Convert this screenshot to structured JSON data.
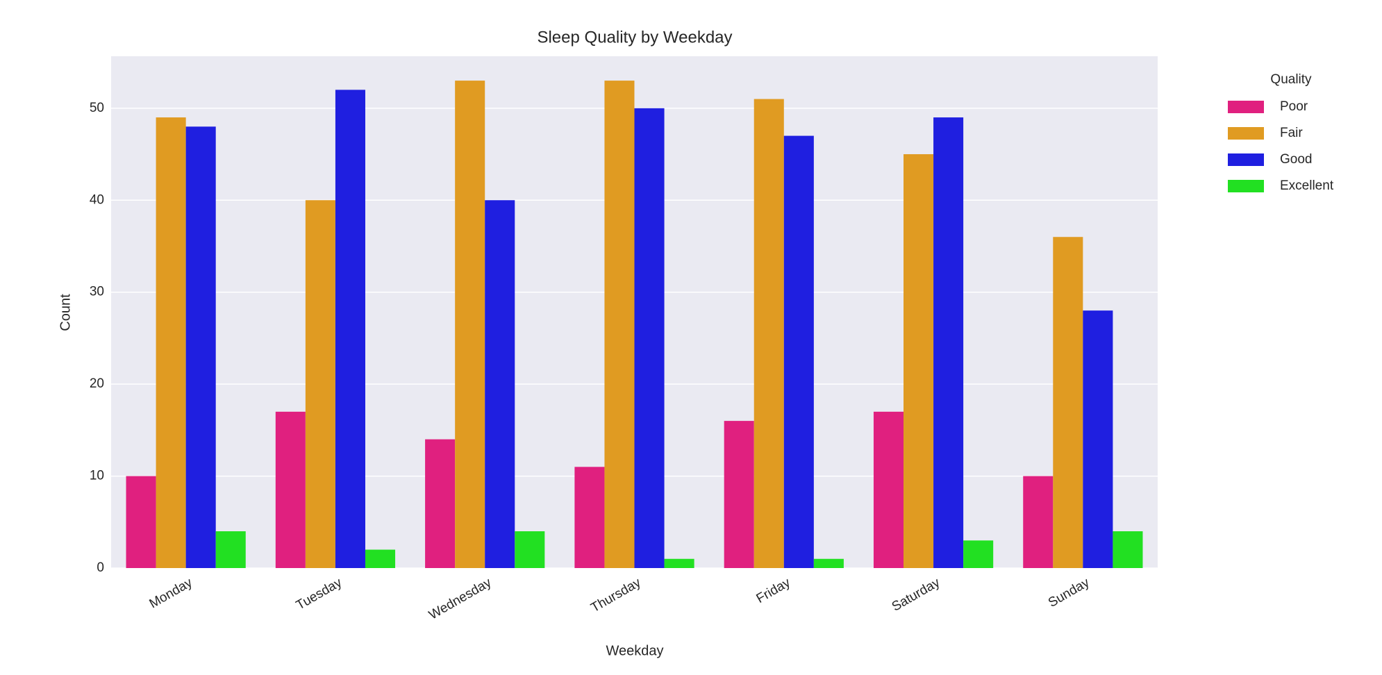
{
  "chart_data": {
    "type": "bar",
    "title": "Sleep Quality by Weekday",
    "x_label": "Weekday",
    "y_label": "Count",
    "categories": [
      "Monday",
      "Tuesday",
      "Wednesday",
      "Thursday",
      "Friday",
      "Saturday",
      "Sunday"
    ],
    "legend_title": "Quality",
    "series": [
      {
        "name": "Poor",
        "color": "#e0207f",
        "values": [
          10,
          17,
          14,
          11,
          16,
          17,
          10
        ]
      },
      {
        "name": "Fair",
        "color": "#e09b22",
        "values": [
          49,
          40,
          53,
          53,
          51,
          45,
          36
        ]
      },
      {
        "name": "Good",
        "color": "#1f1fe0",
        "values": [
          48,
          52,
          40,
          50,
          47,
          49,
          28
        ]
      },
      {
        "name": "Excellent",
        "color": "#22e022",
        "values": [
          4,
          2,
          4,
          1,
          1,
          3,
          4
        ]
      }
    ],
    "ylim": [
      0,
      55.65
    ],
    "yticks": [
      0,
      10,
      20,
      30,
      40,
      50
    ],
    "grid": true
  }
}
